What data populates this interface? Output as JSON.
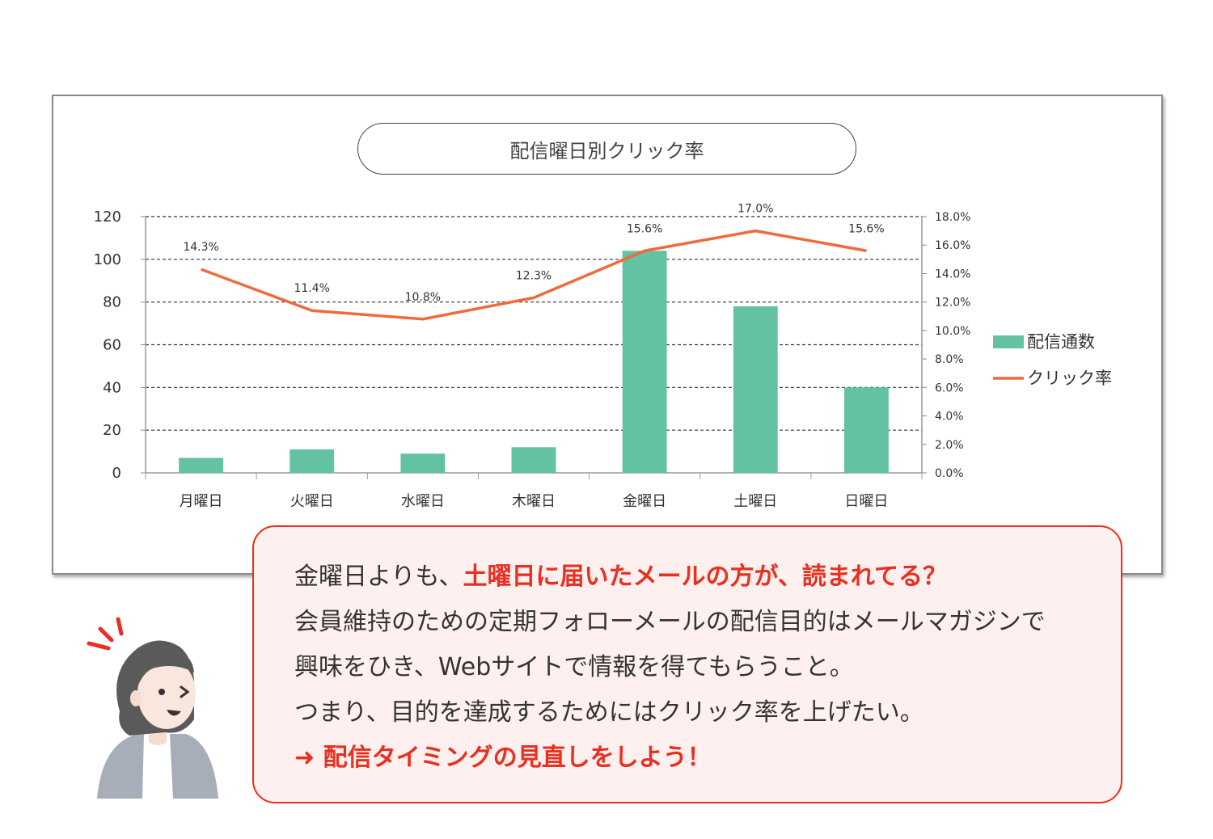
{
  "chart_data": {
    "type": "bar",
    "title": "配信曜日別クリック率",
    "categories": [
      "月曜日",
      "火曜日",
      "水曜日",
      "木曜日",
      "金曜日",
      "土曜日",
      "日曜日"
    ],
    "series": [
      {
        "name": "配信通数",
        "type": "bar",
        "axis": "left",
        "color": "#63c2a2",
        "values": [
          7,
          11,
          9,
          12,
          104,
          78,
          40
        ]
      },
      {
        "name": "クリック率",
        "type": "line",
        "axis": "right",
        "color": "#f06a3b",
        "values": [
          14.3,
          11.4,
          10.8,
          12.3,
          15.6,
          17.0,
          15.6
        ]
      }
    ],
    "data_labels": [
      "14.3%",
      "11.4%",
      "10.8%",
      "12.3%",
      "15.6%",
      "17.0%",
      "15.6%"
    ],
    "y_left": {
      "ylim": [
        0,
        120
      ],
      "ticks": [
        "0",
        "20",
        "40",
        "60",
        "80",
        "100",
        "120"
      ]
    },
    "y_right": {
      "ylim": [
        0,
        18
      ],
      "ticks": [
        "0.0%",
        "2.0%",
        "4.0%",
        "6.0%",
        "8.0%",
        "10.0%",
        "12.0%",
        "14.0%",
        "16.0%",
        "18.0%"
      ]
    },
    "grid": "dashed-horizontal",
    "legend_position": "right"
  },
  "message": {
    "line1_prefix": "金曜日よりも、",
    "line1_emphasis": "土曜日に届いたメールの方が、読まれてる？",
    "line2": "会員維持のための定期フォローメールの配信目的はメールマガジンで",
    "line3": "興味をひき、Webサイトで情報を得てもらうこと。",
    "line4": "つまり、目的を達成するためにはクリック率を上げたい。",
    "line5": "➜ 配信タイミングの見直しをしよう！"
  },
  "colors": {
    "bar": "#63c2a2",
    "line": "#f06a3b",
    "accent": "#e83020",
    "bubble_bg": "#fdf0ef"
  }
}
